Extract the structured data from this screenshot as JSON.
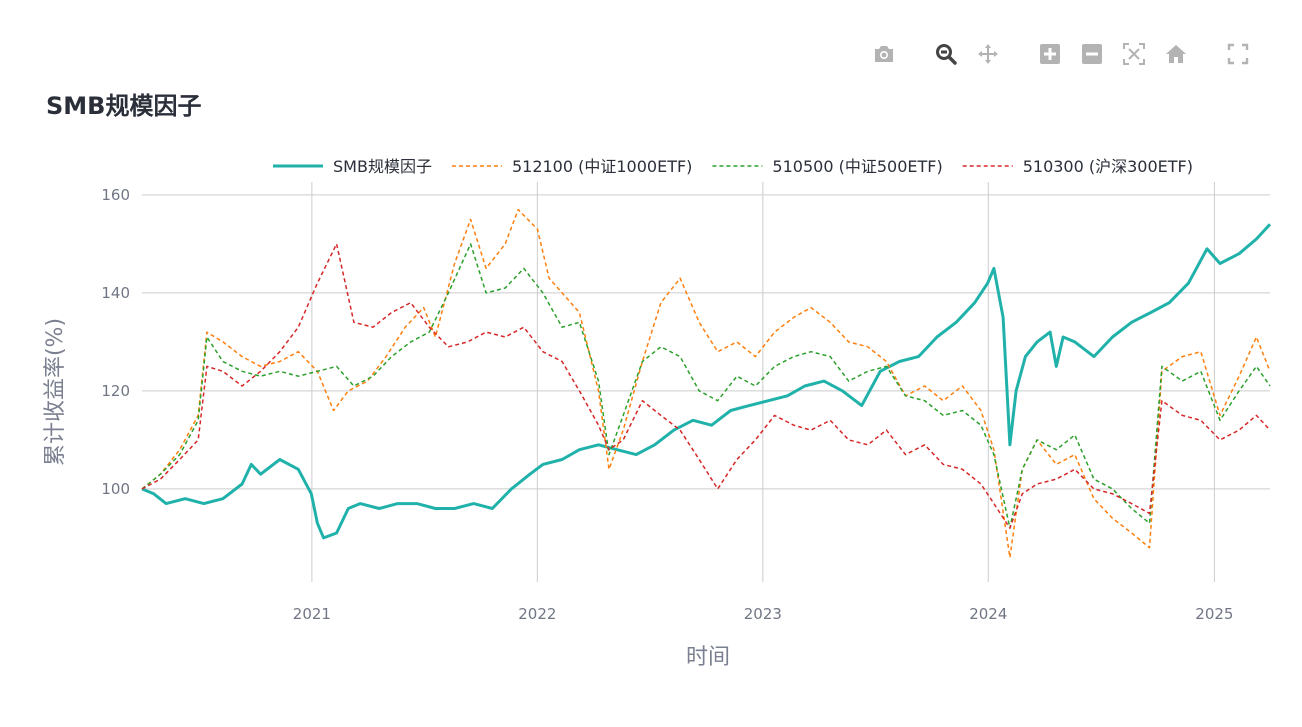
{
  "title": "SMB规模因子",
  "modebar": {
    "icons": [
      "camera-icon",
      "zoom-icon",
      "pan-icon",
      "zoom-in-icon",
      "zoom-out-icon",
      "autoscale-icon",
      "home-icon",
      "fullscreen-icon"
    ]
  },
  "colors": {
    "smb": "#20b2aa",
    "csi1000": "#ff7f0e",
    "csi500": "#2ca02c",
    "csi300": "#d62728",
    "grid": "#cccccc"
  },
  "chart_data": {
    "type": "line",
    "title": "SMB规模因子",
    "xlabel": "时间",
    "ylabel": "累计收益率(%)",
    "x_ticks": [
      "2021",
      "2022",
      "2023",
      "2024",
      "2025"
    ],
    "y_ticks": [
      100,
      120,
      140,
      160
    ],
    "xlim": [
      "2020-04-01",
      "2025-04-01"
    ],
    "ylim": [
      81,
      161
    ],
    "grid": true,
    "legend_position": "top",
    "series": [
      {
        "name": "SMB规模因子",
        "style": "solid",
        "color": "#20b2aa",
        "points": [
          [
            "2020-04-01",
            100
          ],
          [
            "2020-04-20",
            99
          ],
          [
            "2020-05-10",
            97
          ],
          [
            "2020-06-10",
            98
          ],
          [
            "2020-07-10",
            97
          ],
          [
            "2020-08-10",
            98
          ],
          [
            "2020-09-10",
            101
          ],
          [
            "2020-09-25",
            105
          ],
          [
            "2020-10-10",
            103
          ],
          [
            "2020-11-10",
            106
          ],
          [
            "2020-12-10",
            104
          ],
          [
            "2020-12-31",
            99
          ],
          [
            "2021-01-10",
            93
          ],
          [
            "2021-01-20",
            90
          ],
          [
            "2021-02-10",
            91
          ],
          [
            "2021-03-01",
            96
          ],
          [
            "2021-03-20",
            97
          ],
          [
            "2021-04-20",
            96
          ],
          [
            "2021-05-20",
            97
          ],
          [
            "2021-06-20",
            97
          ],
          [
            "2021-07-20",
            96
          ],
          [
            "2021-08-20",
            96
          ],
          [
            "2021-09-20",
            97
          ],
          [
            "2021-10-20",
            96
          ],
          [
            "2021-11-20",
            100
          ],
          [
            "2021-12-20",
            103
          ],
          [
            "2022-01-10",
            105
          ],
          [
            "2022-02-10",
            106
          ],
          [
            "2022-03-10",
            108
          ],
          [
            "2022-04-10",
            109
          ],
          [
            "2022-05-10",
            108
          ],
          [
            "2022-06-10",
            107
          ],
          [
            "2022-07-10",
            109
          ],
          [
            "2022-08-10",
            112
          ],
          [
            "2022-09-10",
            114
          ],
          [
            "2022-10-10",
            113
          ],
          [
            "2022-11-10",
            116
          ],
          [
            "2022-12-10",
            117
          ],
          [
            "2023-01-10",
            118
          ],
          [
            "2023-02-10",
            119
          ],
          [
            "2023-03-10",
            121
          ],
          [
            "2023-04-10",
            122
          ],
          [
            "2023-05-10",
            120
          ],
          [
            "2023-06-10",
            117
          ],
          [
            "2023-07-10",
            124
          ],
          [
            "2023-08-10",
            126
          ],
          [
            "2023-09-10",
            127
          ],
          [
            "2023-10-10",
            131
          ],
          [
            "2023-11-10",
            134
          ],
          [
            "2023-12-10",
            138
          ],
          [
            "2023-12-31",
            142
          ],
          [
            "2024-01-10",
            145
          ],
          [
            "2024-01-25",
            135
          ],
          [
            "2024-02-05",
            109
          ],
          [
            "2024-02-15",
            120
          ],
          [
            "2024-03-01",
            127
          ],
          [
            "2024-03-20",
            130
          ],
          [
            "2024-04-10",
            132
          ],
          [
            "2024-04-20",
            125
          ],
          [
            "2024-05-01",
            131
          ],
          [
            "2024-05-20",
            130
          ],
          [
            "2024-06-20",
            127
          ],
          [
            "2024-07-20",
            131
          ],
          [
            "2024-08-20",
            134
          ],
          [
            "2024-09-20",
            136
          ],
          [
            "2024-10-20",
            138
          ],
          [
            "2024-11-20",
            142
          ],
          [
            "2024-12-20",
            149
          ],
          [
            "2025-01-10",
            146
          ],
          [
            "2025-02-10",
            148
          ],
          [
            "2025-03-10",
            151
          ],
          [
            "2025-04-01",
            154
          ]
        ]
      },
      {
        "name": "512100 (中证1000ETF)",
        "style": "dash",
        "color": "#ff7f0e",
        "points": [
          [
            "2020-04-01",
            100
          ],
          [
            "2020-05-01",
            103
          ],
          [
            "2020-06-01",
            108
          ],
          [
            "2020-07-01",
            115
          ],
          [
            "2020-07-15",
            132
          ],
          [
            "2020-08-10",
            130
          ],
          [
            "2020-09-10",
            127
          ],
          [
            "2020-10-10",
            125
          ],
          [
            "2020-11-10",
            126
          ],
          [
            "2020-12-10",
            128
          ],
          [
            "2021-01-10",
            124
          ],
          [
            "2021-02-05",
            116
          ],
          [
            "2021-03-01",
            120
          ],
          [
            "2021-04-01",
            122
          ],
          [
            "2021-05-01",
            127
          ],
          [
            "2021-06-01",
            133
          ],
          [
            "2021-07-01",
            137
          ],
          [
            "2021-07-20",
            131
          ],
          [
            "2021-08-20",
            146
          ],
          [
            "2021-09-15",
            155
          ],
          [
            "2021-10-10",
            145
          ],
          [
            "2021-11-10",
            150
          ],
          [
            "2021-12-01",
            157
          ],
          [
            "2022-01-01",
            153
          ],
          [
            "2022-01-20",
            143
          ],
          [
            "2022-02-10",
            140
          ],
          [
            "2022-03-10",
            136
          ],
          [
            "2022-04-10",
            120
          ],
          [
            "2022-04-27",
            104
          ],
          [
            "2022-05-20",
            112
          ],
          [
            "2022-06-20",
            126
          ],
          [
            "2022-07-20",
            138
          ],
          [
            "2022-08-20",
            143
          ],
          [
            "2022-09-20",
            134
          ],
          [
            "2022-10-20",
            128
          ],
          [
            "2022-11-20",
            130
          ],
          [
            "2022-12-20",
            127
          ],
          [
            "2023-01-20",
            132
          ],
          [
            "2023-02-20",
            135
          ],
          [
            "2023-03-20",
            137
          ],
          [
            "2023-04-20",
            134
          ],
          [
            "2023-05-20",
            130
          ],
          [
            "2023-06-20",
            129
          ],
          [
            "2023-07-20",
            126
          ],
          [
            "2023-08-20",
            119
          ],
          [
            "2023-09-20",
            121
          ],
          [
            "2023-10-20",
            118
          ],
          [
            "2023-11-20",
            121
          ],
          [
            "2023-12-20",
            116
          ],
          [
            "2024-01-10",
            108
          ],
          [
            "2024-02-05",
            86
          ],
          [
            "2024-02-25",
            104
          ],
          [
            "2024-03-20",
            110
          ],
          [
            "2024-04-20",
            105
          ],
          [
            "2024-05-20",
            107
          ],
          [
            "2024-06-20",
            98
          ],
          [
            "2024-07-20",
            94
          ],
          [
            "2024-08-20",
            91
          ],
          [
            "2024-09-18",
            88
          ],
          [
            "2024-10-08",
            124
          ],
          [
            "2024-11-10",
            127
          ],
          [
            "2024-12-10",
            128
          ],
          [
            "2025-01-10",
            115
          ],
          [
            "2025-02-10",
            123
          ],
          [
            "2025-03-10",
            131
          ],
          [
            "2025-04-01",
            124
          ]
        ]
      },
      {
        "name": "510500 (中证500ETF)",
        "style": "dash",
        "color": "#2ca02c",
        "points": [
          [
            "2020-04-01",
            100
          ],
          [
            "2020-05-01",
            103
          ],
          [
            "2020-06-01",
            107
          ],
          [
            "2020-07-01",
            114
          ],
          [
            "2020-07-15",
            131
          ],
          [
            "2020-08-10",
            126
          ],
          [
            "2020-09-10",
            124
          ],
          [
            "2020-10-10",
            123
          ],
          [
            "2020-11-10",
            124
          ],
          [
            "2020-12-10",
            123
          ],
          [
            "2021-01-10",
            124
          ],
          [
            "2021-02-10",
            125
          ],
          [
            "2021-03-10",
            121
          ],
          [
            "2021-04-10",
            123
          ],
          [
            "2021-05-10",
            127
          ],
          [
            "2021-06-10",
            130
          ],
          [
            "2021-07-10",
            132
          ],
          [
            "2021-08-10",
            140
          ],
          [
            "2021-09-15",
            150
          ],
          [
            "2021-10-10",
            140
          ],
          [
            "2021-11-10",
            141
          ],
          [
            "2021-12-10",
            145
          ],
          [
            "2022-01-10",
            140
          ],
          [
            "2022-02-10",
            133
          ],
          [
            "2022-03-10",
            134
          ],
          [
            "2022-04-10",
            122
          ],
          [
            "2022-04-27",
            107
          ],
          [
            "2022-05-20",
            115
          ],
          [
            "2022-06-20",
            126
          ],
          [
            "2022-07-20",
            129
          ],
          [
            "2022-08-20",
            127
          ],
          [
            "2022-09-20",
            120
          ],
          [
            "2022-10-20",
            118
          ],
          [
            "2022-11-20",
            123
          ],
          [
            "2022-12-20",
            121
          ],
          [
            "2023-01-20",
            125
          ],
          [
            "2023-02-20",
            127
          ],
          [
            "2023-03-20",
            128
          ],
          [
            "2023-04-20",
            127
          ],
          [
            "2023-05-20",
            122
          ],
          [
            "2023-06-20",
            124
          ],
          [
            "2023-07-20",
            125
          ],
          [
            "2023-08-20",
            119
          ],
          [
            "2023-09-20",
            118
          ],
          [
            "2023-10-20",
            115
          ],
          [
            "2023-11-20",
            116
          ],
          [
            "2023-12-20",
            113
          ],
          [
            "2024-01-10",
            107
          ],
          [
            "2024-02-05",
            92
          ],
          [
            "2024-02-25",
            104
          ],
          [
            "2024-03-20",
            110
          ],
          [
            "2024-04-20",
            108
          ],
          [
            "2024-05-20",
            111
          ],
          [
            "2024-06-20",
            102
          ],
          [
            "2024-07-20",
            100
          ],
          [
            "2024-08-20",
            96
          ],
          [
            "2024-09-18",
            93
          ],
          [
            "2024-10-08",
            125
          ],
          [
            "2024-11-10",
            122
          ],
          [
            "2024-12-10",
            124
          ],
          [
            "2025-01-10",
            114
          ],
          [
            "2025-02-10",
            120
          ],
          [
            "2025-03-10",
            125
          ],
          [
            "2025-04-01",
            121
          ]
        ]
      },
      {
        "name": "510300 (沪深300ETF)",
        "style": "dash",
        "color": "#d62728",
        "points": [
          [
            "2020-04-01",
            100
          ],
          [
            "2020-05-01",
            102
          ],
          [
            "2020-06-01",
            106
          ],
          [
            "2020-07-01",
            110
          ],
          [
            "2020-07-15",
            125
          ],
          [
            "2020-08-10",
            124
          ],
          [
            "2020-09-10",
            121
          ],
          [
            "2020-10-10",
            124
          ],
          [
            "2020-11-10",
            128
          ],
          [
            "2020-12-10",
            133
          ],
          [
            "2021-01-10",
            142
          ],
          [
            "2021-02-10",
            150
          ],
          [
            "2021-03-10",
            134
          ],
          [
            "2021-04-10",
            133
          ],
          [
            "2021-05-10",
            136
          ],
          [
            "2021-06-10",
            138
          ],
          [
            "2021-07-10",
            133
          ],
          [
            "2021-08-10",
            129
          ],
          [
            "2021-09-10",
            130
          ],
          [
            "2021-10-10",
            132
          ],
          [
            "2021-11-10",
            131
          ],
          [
            "2021-12-10",
            133
          ],
          [
            "2022-01-10",
            128
          ],
          [
            "2022-02-10",
            126
          ],
          [
            "2022-03-10",
            120
          ],
          [
            "2022-04-10",
            113
          ],
          [
            "2022-04-27",
            108
          ],
          [
            "2022-05-20",
            110
          ],
          [
            "2022-06-20",
            118
          ],
          [
            "2022-07-20",
            115
          ],
          [
            "2022-08-20",
            112
          ],
          [
            "2022-09-20",
            106
          ],
          [
            "2022-10-20",
            100
          ],
          [
            "2022-11-20",
            106
          ],
          [
            "2022-12-20",
            110
          ],
          [
            "2023-01-20",
            115
          ],
          [
            "2023-02-20",
            113
          ],
          [
            "2023-03-20",
            112
          ],
          [
            "2023-04-20",
            114
          ],
          [
            "2023-05-20",
            110
          ],
          [
            "2023-06-20",
            109
          ],
          [
            "2023-07-20",
            112
          ],
          [
            "2023-08-20",
            107
          ],
          [
            "2023-09-20",
            109
          ],
          [
            "2023-10-20",
            105
          ],
          [
            "2023-11-20",
            104
          ],
          [
            "2023-12-20",
            101
          ],
          [
            "2024-01-10",
            97
          ],
          [
            "2024-02-05",
            92
          ],
          [
            "2024-02-25",
            99
          ],
          [
            "2024-03-20",
            101
          ],
          [
            "2024-04-20",
            102
          ],
          [
            "2024-05-20",
            104
          ],
          [
            "2024-06-20",
            100
          ],
          [
            "2024-07-20",
            99
          ],
          [
            "2024-08-20",
            97
          ],
          [
            "2024-09-18",
            95
          ],
          [
            "2024-10-08",
            118
          ],
          [
            "2024-11-10",
            115
          ],
          [
            "2024-12-10",
            114
          ],
          [
            "2025-01-10",
            110
          ],
          [
            "2025-02-10",
            112
          ],
          [
            "2025-03-10",
            115
          ],
          [
            "2025-04-01",
            112
          ]
        ]
      }
    ]
  }
}
